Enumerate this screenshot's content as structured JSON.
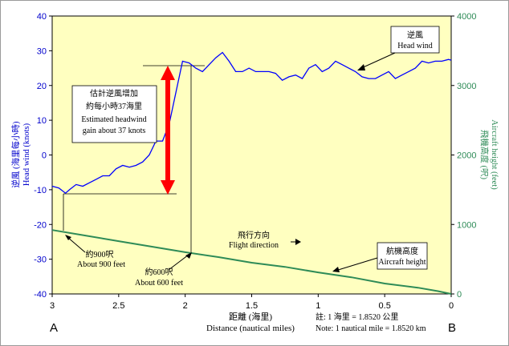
{
  "chart_data": {
    "type": "line",
    "xlabel_zh": "距離 (海里)",
    "xlabel_en": "Distance (nautical miles)",
    "xlim": [
      3,
      0
    ],
    "x_ticks": [
      "3",
      "2.5",
      "2",
      "1.5",
      "1",
      "0.5",
      "0"
    ],
    "y_left": {
      "label_zh": "逆風 (海里每小時)",
      "label_en": "Head wind (knots)",
      "range": [
        -40,
        40
      ],
      "ticks": [
        "40",
        "30",
        "20",
        "10",
        "0",
        "-10",
        "-20",
        "-30",
        "-40"
      ],
      "color": "#0000cc"
    },
    "y_right": {
      "label_zh": "飛機高度 (呎)",
      "label_en": "Aircraft height (feet)",
      "range": [
        0,
        4000
      ],
      "ticks": [
        "4000",
        "3000",
        "2000",
        "1000",
        "0"
      ],
      "color": "#2e8b57"
    },
    "series": [
      {
        "name": "Head wind",
        "axis": "left",
        "color": "#0000ff",
        "x": [
          3.0,
          2.95,
          2.9,
          2.87,
          2.82,
          2.77,
          2.72,
          2.67,
          2.62,
          2.57,
          2.52,
          2.47,
          2.42,
          2.37,
          2.32,
          2.27,
          2.22,
          2.17,
          2.12,
          2.07,
          2.02,
          1.97,
          1.92,
          1.87,
          1.82,
          1.77,
          1.72,
          1.67,
          1.62,
          1.57,
          1.52,
          1.47,
          1.42,
          1.37,
          1.32,
          1.27,
          1.22,
          1.17,
          1.12,
          1.07,
          1.02,
          0.97,
          0.92,
          0.87,
          0.82,
          0.77,
          0.72,
          0.67,
          0.62,
          0.57,
          0.52,
          0.47,
          0.42,
          0.37,
          0.32,
          0.27,
          0.22,
          0.17,
          0.12,
          0.07,
          0.02,
          0.0
        ],
        "y": [
          -9,
          -9.5,
          -11,
          -10,
          -8.5,
          -9,
          -8,
          -7,
          -6,
          -6,
          -4,
          -3,
          -3.5,
          -3,
          -2,
          0,
          4,
          4,
          9,
          18,
          27,
          26.5,
          25,
          24,
          26,
          28,
          29.5,
          27,
          24,
          24,
          25,
          24,
          24,
          24,
          23.5,
          21.5,
          22.5,
          23,
          22,
          25,
          26,
          24,
          25,
          27,
          26,
          25,
          24,
          22.5,
          22,
          22,
          23,
          24,
          22,
          23,
          24,
          25,
          27,
          26.5,
          27,
          27,
          27.5,
          27.3
        ]
      },
      {
        "name": "Aircraft height",
        "axis": "right",
        "color": "#2e8b57",
        "x": [
          3.0,
          2.75,
          2.5,
          2.25,
          2.0,
          1.75,
          1.5,
          1.25,
          1.0,
          0.75,
          0.5,
          0.25,
          0.1,
          0.0
        ],
        "y": [
          920,
          840,
          760,
          680,
          600,
          530,
          450,
          390,
          310,
          240,
          150,
          90,
          40,
          0
        ]
      }
    ],
    "annotations": {
      "box_gain_zh1": "估計逆風增加",
      "box_gain_zh2": "約每小時37海里",
      "box_gain_en1": "Estimated headwind",
      "box_gain_en2": "gain about 37 knots",
      "box_headwind_zh": "逆風",
      "box_headwind_en": "Head wind",
      "box_height_zh": "航機高度",
      "box_height_en": "Aircraft height",
      "flight_dir_zh": "飛行方向",
      "flight_dir_en": "Flight direction",
      "h900_zh": "約900呎",
      "h900_en": "About 900 feet",
      "h600_zh": "約600呎",
      "h600_en": "About 600 feet",
      "point_a": "A",
      "point_b": "B",
      "note_zh": "註: 1 海里 = 1.8520 公里",
      "note_en": "Note: 1 nautical mile = 1.8520 km"
    },
    "colors": {
      "plot_bg": "#ffffc0",
      "arrow": "#ff0000"
    }
  }
}
